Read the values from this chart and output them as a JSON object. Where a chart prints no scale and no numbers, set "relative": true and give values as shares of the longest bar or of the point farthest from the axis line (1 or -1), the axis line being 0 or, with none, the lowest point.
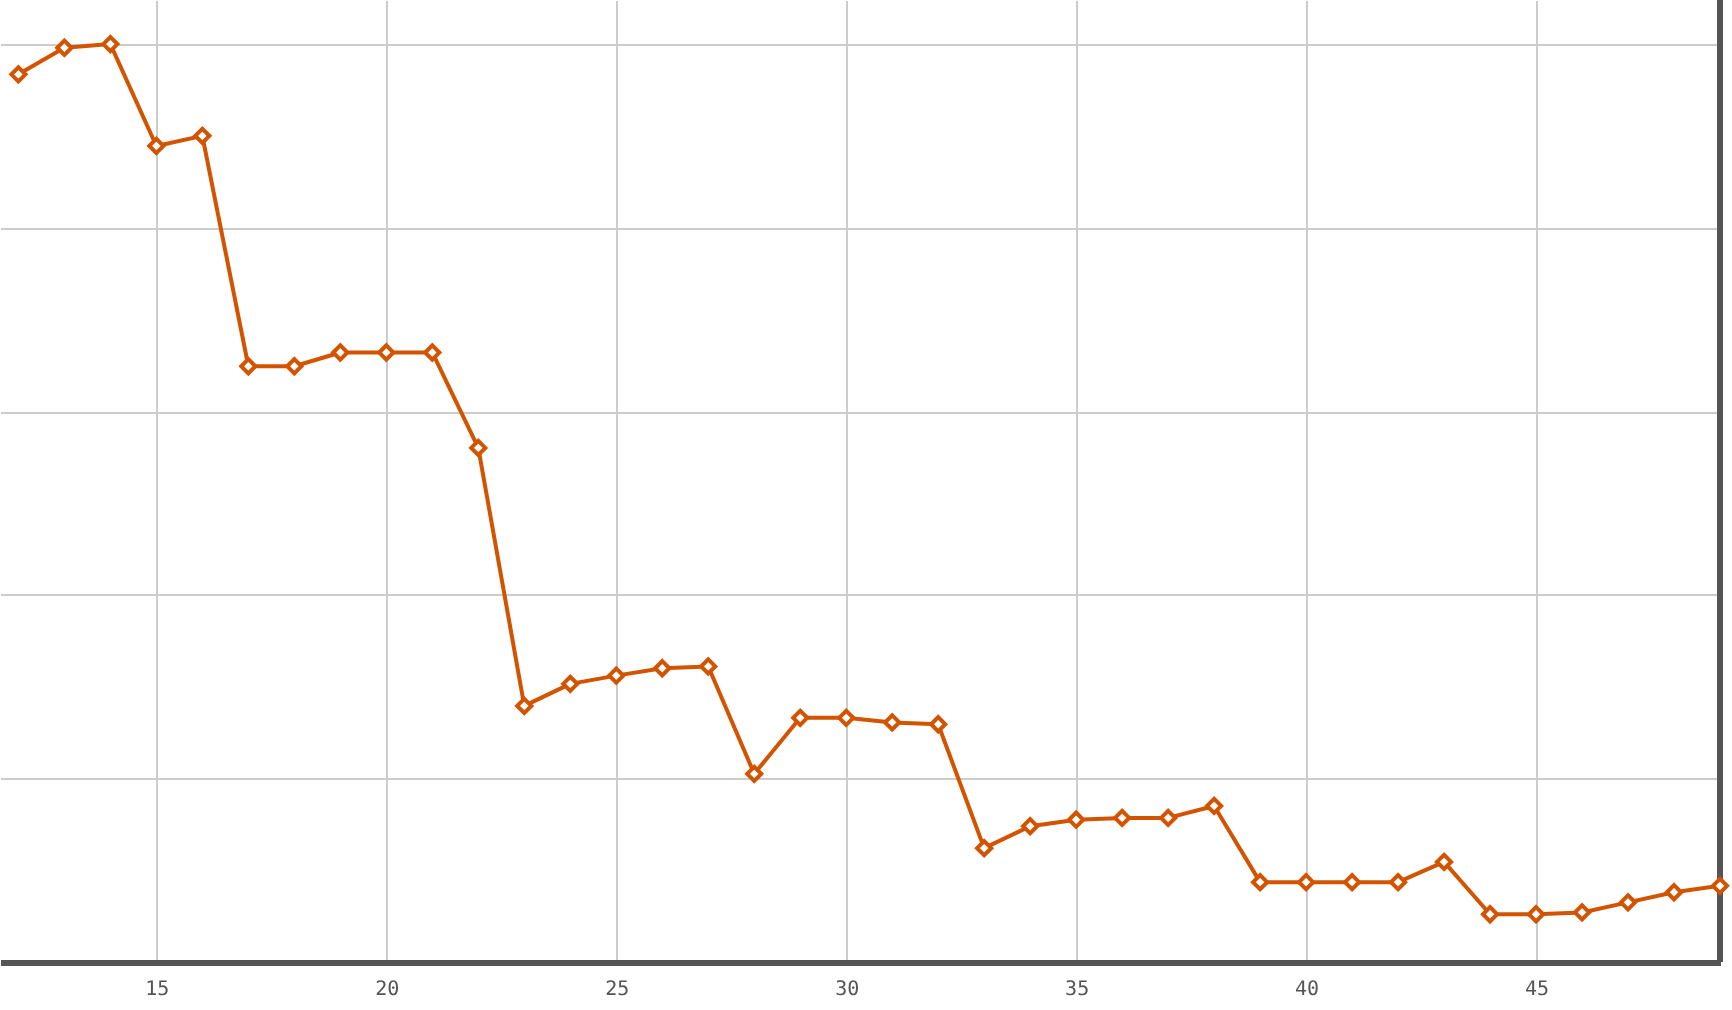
{
  "chart_data": {
    "type": "line",
    "relative": true,
    "x": [
      12,
      13,
      14,
      15,
      16,
      17,
      18,
      19,
      20,
      21,
      22,
      23,
      24,
      25,
      26,
      27,
      28,
      29,
      30,
      31,
      32,
      33,
      34,
      35,
      36,
      37,
      38,
      39,
      40,
      41,
      42,
      43,
      44,
      45,
      46,
      47,
      48,
      49
    ],
    "series": [
      {
        "color": "#d35400",
        "values": [
          0.967,
          0.996,
          1,
          0.889,
          0.9,
          0.649,
          0.649,
          0.664,
          0.664,
          0.664,
          0.56,
          0.279,
          0.303,
          0.312,
          0.32,
          0.322,
          0.205,
          0.266,
          0.266,
          0.261,
          0.259,
          0.124,
          0.148,
          0.155,
          0.157,
          0.157,
          0.17,
          0.087,
          0.087,
          0.087,
          0.087,
          0.109,
          0.052,
          0.052,
          0.054,
          0.065,
          0.076,
          0.083
        ]
      }
    ],
    "xlim": [
      11.6,
      49
    ],
    "xticks": [
      15,
      20,
      25,
      30,
      35,
      40,
      45
    ],
    "grid": true,
    "marker": "diamond",
    "line_style": "solid"
  }
}
